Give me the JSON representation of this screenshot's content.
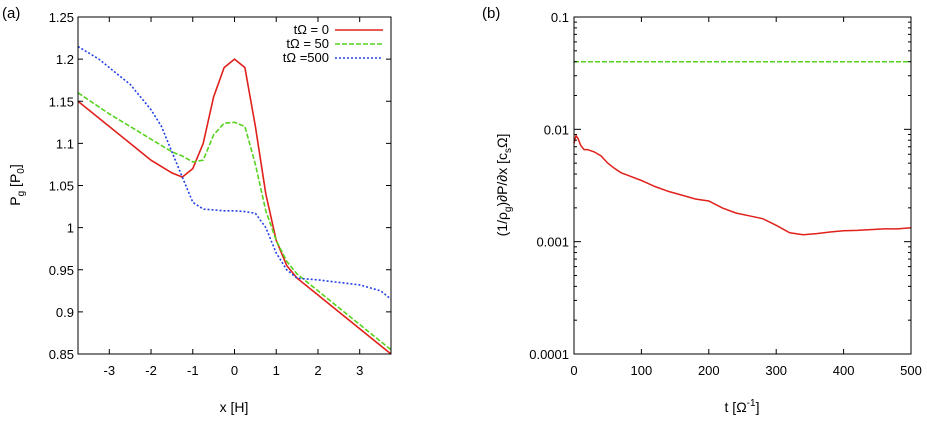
{
  "chart_data": [
    {
      "type": "line",
      "panel_label": "(a)",
      "xlabel": "x [H]",
      "ylabel_main": "P",
      "ylabel_sub": "g",
      "ylabel_bracket_main": " [P",
      "ylabel_bracket_sub": "0",
      "ylabel_close": "]",
      "xlim": [
        -3.75,
        3.75
      ],
      "ylim": [
        0.85,
        1.25
      ],
      "x_ticks": [
        -3,
        -2,
        -1,
        0,
        1,
        2,
        3
      ],
      "x_tick_labels": [
        "-3",
        "-2",
        "-1",
        "0",
        "1",
        "2",
        "3"
      ],
      "y_ticks": [
        0.85,
        0.9,
        0.95,
        1.0,
        1.05,
        1.1,
        1.15,
        1.2,
        1.25
      ],
      "y_tick_labels": [
        "0.85",
        "0.9",
        "0.95",
        "1",
        "1.05",
        "1.1",
        "1.15",
        "1.2",
        "1.25"
      ],
      "legend_position": "top-right",
      "series": [
        {
          "name": "tΩ  =  0",
          "color": "#e0201b",
          "dash": "solid",
          "x": [
            -3.75,
            -3.0,
            -2.5,
            -2.0,
            -1.5,
            -1.25,
            -1.0,
            -0.75,
            -0.5,
            -0.25,
            0.0,
            0.25,
            0.5,
            0.75,
            1.0,
            1.25,
            1.5,
            2.0,
            2.5,
            3.0,
            3.5,
            3.75
          ],
          "y": [
            1.15,
            1.12,
            1.1,
            1.08,
            1.065,
            1.06,
            1.07,
            1.1,
            1.155,
            1.19,
            1.2,
            1.19,
            1.12,
            1.04,
            0.985,
            0.955,
            0.94,
            0.92,
            0.9,
            0.88,
            0.86,
            0.85
          ]
        },
        {
          "name": "tΩ  = 50",
          "color": "#57d31f",
          "dash": "dashed",
          "x": [
            -3.75,
            -3.0,
            -2.5,
            -2.0,
            -1.5,
            -1.25,
            -1.0,
            -0.75,
            -0.5,
            -0.25,
            0.0,
            0.25,
            0.5,
            0.75,
            1.0,
            1.25,
            1.5,
            2.0,
            2.5,
            3.0,
            3.5,
            3.75
          ],
          "y": [
            1.16,
            1.135,
            1.12,
            1.105,
            1.09,
            1.085,
            1.078,
            1.08,
            1.11,
            1.124,
            1.125,
            1.12,
            1.075,
            1.02,
            0.985,
            0.96,
            0.945,
            0.925,
            0.905,
            0.885,
            0.865,
            0.855
          ]
        },
        {
          "name": "tΩ  =500",
          "color": "#2340e6",
          "dash": "dotted",
          "x": [
            -3.75,
            -3.25,
            -3.0,
            -2.5,
            -2.0,
            -1.75,
            -1.5,
            -1.25,
            -1.0,
            -0.75,
            -0.5,
            -0.25,
            0.0,
            0.25,
            0.5,
            0.75,
            1.0,
            1.25,
            1.5,
            2.0,
            2.5,
            3.0,
            3.5,
            3.75
          ],
          "y": [
            1.215,
            1.2,
            1.19,
            1.17,
            1.14,
            1.12,
            1.09,
            1.06,
            1.03,
            1.022,
            1.021,
            1.02,
            1.02,
            1.019,
            1.017,
            1.0,
            0.97,
            0.95,
            0.94,
            0.938,
            0.935,
            0.932,
            0.925,
            0.915
          ]
        }
      ]
    },
    {
      "type": "line",
      "panel_label": "(b)",
      "xlabel_main": "t [Ω",
      "xlabel_sup": "-1",
      "xlabel_close": "]",
      "ylabel_parts": [
        "(1/ρ",
        "g",
        ")∂P/∂x [c",
        "s",
        "Ω]"
      ],
      "xlim": [
        0,
        500
      ],
      "ylim": [
        0.0001,
        0.1
      ],
      "yscale": "log",
      "x_ticks": [
        0,
        100,
        200,
        300,
        400,
        500
      ],
      "x_tick_labels": [
        "0",
        "100",
        "200",
        "300",
        "400",
        "500"
      ],
      "y_ticks": [
        0.0001,
        0.001,
        0.01,
        0.1
      ],
      "y_tick_labels": [
        "0.0001",
        "0.001",
        "0.01",
        "0.1"
      ],
      "series": [
        {
          "color": "#57d31f",
          "dash": "dashed",
          "x": [
            0,
            500
          ],
          "y": [
            0.04,
            0.04
          ]
        },
        {
          "color": "#e0201b",
          "dash": "solid",
          "x": [
            0,
            3,
            6,
            10,
            15,
            20,
            30,
            40,
            50,
            60,
            70,
            80,
            100,
            120,
            140,
            160,
            180,
            200,
            220,
            240,
            260,
            280,
            300,
            320,
            340,
            360,
            380,
            400,
            420,
            440,
            460,
            480,
            500
          ],
          "y": [
            0.0075,
            0.0088,
            0.0083,
            0.0072,
            0.0066,
            0.0066,
            0.0063,
            0.0058,
            0.005,
            0.0045,
            0.0041,
            0.0039,
            0.0035,
            0.0031,
            0.0028,
            0.0026,
            0.0024,
            0.0023,
            0.002,
            0.0018,
            0.0017,
            0.0016,
            0.0014,
            0.0012,
            0.00115,
            0.00118,
            0.00122,
            0.00125,
            0.00126,
            0.00128,
            0.0013,
            0.0013,
            0.00133
          ]
        }
      ]
    }
  ]
}
